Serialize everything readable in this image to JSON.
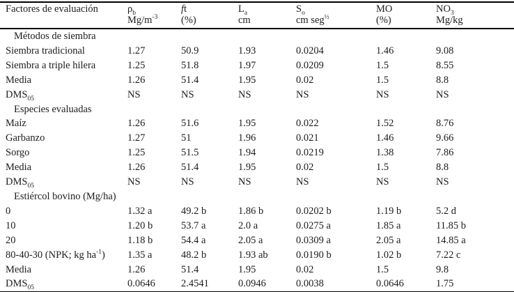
{
  "page": {
    "background": "#ffffff",
    "text_color": "#1c1c1c",
    "rule_color": "#000000"
  },
  "table": {
    "columns": [
      {
        "name": "factores",
        "parts": [
          {
            "t": "Factores de evaluación"
          }
        ],
        "unit_parts": []
      },
      {
        "name": "rho-b",
        "parts": [
          {
            "t": "ρ"
          },
          {
            "t": "b",
            "s": "sub"
          }
        ],
        "unit_parts": [
          {
            "t": "Mg/m"
          },
          {
            "t": "-3",
            "s": "sup"
          }
        ]
      },
      {
        "name": "ft",
        "parts": [
          {
            "t": "f",
            "s": "i"
          },
          {
            "t": "t"
          }
        ],
        "unit_parts": [
          {
            "t": "(%)"
          }
        ]
      },
      {
        "name": "la",
        "parts": [
          {
            "t": "L"
          },
          {
            "t": "a",
            "s": "sub"
          }
        ],
        "unit_parts": [
          {
            "t": "cm"
          }
        ]
      },
      {
        "name": "so",
        "parts": [
          {
            "t": "S"
          },
          {
            "t": "o",
            "s": "sub"
          }
        ],
        "unit_parts": [
          {
            "t": "cm seg"
          },
          {
            "t": "½",
            "s": "sup"
          }
        ]
      },
      {
        "name": "mo",
        "parts": [
          {
            "t": "MO"
          }
        ],
        "unit_parts": [
          {
            "t": "(%)"
          }
        ]
      },
      {
        "name": "no3",
        "parts": [
          {
            "t": "NO"
          },
          {
            "t": "3",
            "s": "sub"
          }
        ],
        "unit_parts": [
          {
            "t": "Mg/kg"
          }
        ]
      }
    ],
    "rows": [
      {
        "type": "section",
        "label_parts": [
          {
            "t": "Métodos de siembra"
          }
        ]
      },
      {
        "type": "data",
        "label_parts": [
          {
            "t": "Siembra tradicional"
          }
        ],
        "values": [
          "1.27",
          "50.9",
          "1.93",
          "0.0204",
          "1.46",
          "9.08"
        ]
      },
      {
        "type": "data",
        "label_parts": [
          {
            "t": "Siembra a triple hilera"
          }
        ],
        "values": [
          "1.25",
          "51.8",
          "1.97",
          "0.0209",
          "1.5",
          "8.55"
        ]
      },
      {
        "type": "data",
        "label_parts": [
          {
            "t": "Media"
          }
        ],
        "values": [
          "1.26",
          "51.4",
          "1.95",
          "0.02",
          "1.5",
          "8.8"
        ]
      },
      {
        "type": "data",
        "label_parts": [
          {
            "t": "DMS"
          },
          {
            "t": "05",
            "s": "sub"
          }
        ],
        "values": [
          "NS",
          "NS",
          "NS",
          "NS",
          "NS",
          "NS"
        ]
      },
      {
        "type": "section",
        "label_parts": [
          {
            "t": "Especies evaluadas"
          }
        ]
      },
      {
        "type": "data",
        "label_parts": [
          {
            "t": "Maíz"
          }
        ],
        "values": [
          "1.26",
          "51.6",
          "1.95",
          "0.022",
          "1.52",
          "8.76"
        ]
      },
      {
        "type": "data",
        "label_parts": [
          {
            "t": "Garbanzo"
          }
        ],
        "values": [
          "1.27",
          "51",
          "1.96",
          "0.021",
          "1.46",
          "9.66"
        ]
      },
      {
        "type": "data",
        "label_parts": [
          {
            "t": "Sorgo"
          }
        ],
        "values": [
          "1.25",
          "51.5",
          "1.94",
          "0.0219",
          "1.38",
          "7.86"
        ]
      },
      {
        "type": "data",
        "label_parts": [
          {
            "t": "Media"
          }
        ],
        "values": [
          "1.26",
          "51.4",
          "1.95",
          "0.02",
          "1.5",
          "8.8"
        ]
      },
      {
        "type": "data",
        "label_parts": [
          {
            "t": "DMS"
          },
          {
            "t": "05",
            "s": "sub"
          }
        ],
        "values": [
          "NS",
          "NS",
          "NS",
          "NS",
          "NS",
          "NS"
        ]
      },
      {
        "type": "section",
        "label_parts": [
          {
            "t": "Estiércol bovino (Mg/ha)"
          }
        ]
      },
      {
        "type": "data",
        "label_parts": [
          {
            "t": "0"
          }
        ],
        "values": [
          "1.32 a",
          "49.2 b",
          "1.86 b",
          "0.0202 b",
          "1.19 b",
          "5.2 d"
        ]
      },
      {
        "type": "data",
        "label_parts": [
          {
            "t": "10"
          }
        ],
        "values": [
          "1.20 b",
          "53.7 a",
          "2.0 a",
          "0.0275 a",
          "1.85 a",
          "11.85 b"
        ]
      },
      {
        "type": "data",
        "label_parts": [
          {
            "t": "20"
          }
        ],
        "values": [
          "1.18 b",
          "54.4 a",
          "2.05 a",
          "0.0309 a",
          "2.05 a",
          "14.85 a"
        ]
      },
      {
        "type": "data",
        "label_parts": [
          {
            "t": "80-40-30 (NPK; kg ha"
          },
          {
            "t": "-1",
            "s": "sup"
          },
          {
            "t": ")"
          }
        ],
        "values": [
          "1.35 a",
          "48.2 b",
          "1.93 ab",
          "0.0190 b",
          "1.02 b",
          "7.22 c"
        ]
      },
      {
        "type": "data",
        "label_parts": [
          {
            "t": "Media"
          }
        ],
        "values": [
          "1.26",
          "51.4",
          "1.95",
          "0.02",
          "1.5",
          "9.8"
        ]
      },
      {
        "type": "data",
        "label_parts": [
          {
            "t": "DMS"
          },
          {
            "t": "05",
            "s": "sub"
          }
        ],
        "values": [
          "0.0646",
          "2.4541",
          "0.0946",
          "0.0038",
          "0.0646",
          "1.75"
        ]
      }
    ]
  }
}
